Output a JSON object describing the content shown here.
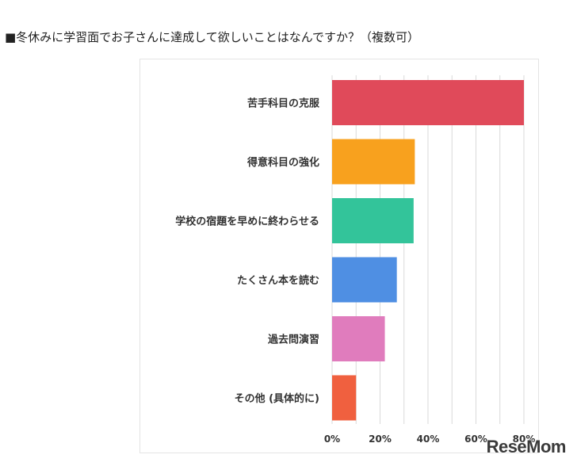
{
  "heading": "■冬休みに学習面でお子さんに達成して欲しいことはなんですか？（複数可）",
  "watermark": "ReseMom",
  "chart_data": {
    "type": "bar",
    "orientation": "horizontal",
    "title": "■冬休みに学習面でお子さんに達成して欲しいことはなんですか？（複数可）",
    "categories": [
      "苦手科目の克服",
      "得意科目の強化",
      "学校の宿題を早めに終わらせる",
      "たくさん本を読む",
      "過去問演習",
      "その他 (具体的に)"
    ],
    "values": [
      80,
      34.5,
      34,
      27,
      22,
      10
    ],
    "colors": [
      "#e04a5a",
      "#f8a11e",
      "#33c49a",
      "#4f8fe3",
      "#e07cbd",
      "#f0603f"
    ],
    "xlim": [
      0,
      80
    ],
    "xticks": [
      0,
      20,
      40,
      60,
      80
    ],
    "tick_labels": [
      "0%",
      "20%",
      "40%",
      "60%",
      "80%"
    ],
    "grid": true,
    "legend": "none"
  }
}
